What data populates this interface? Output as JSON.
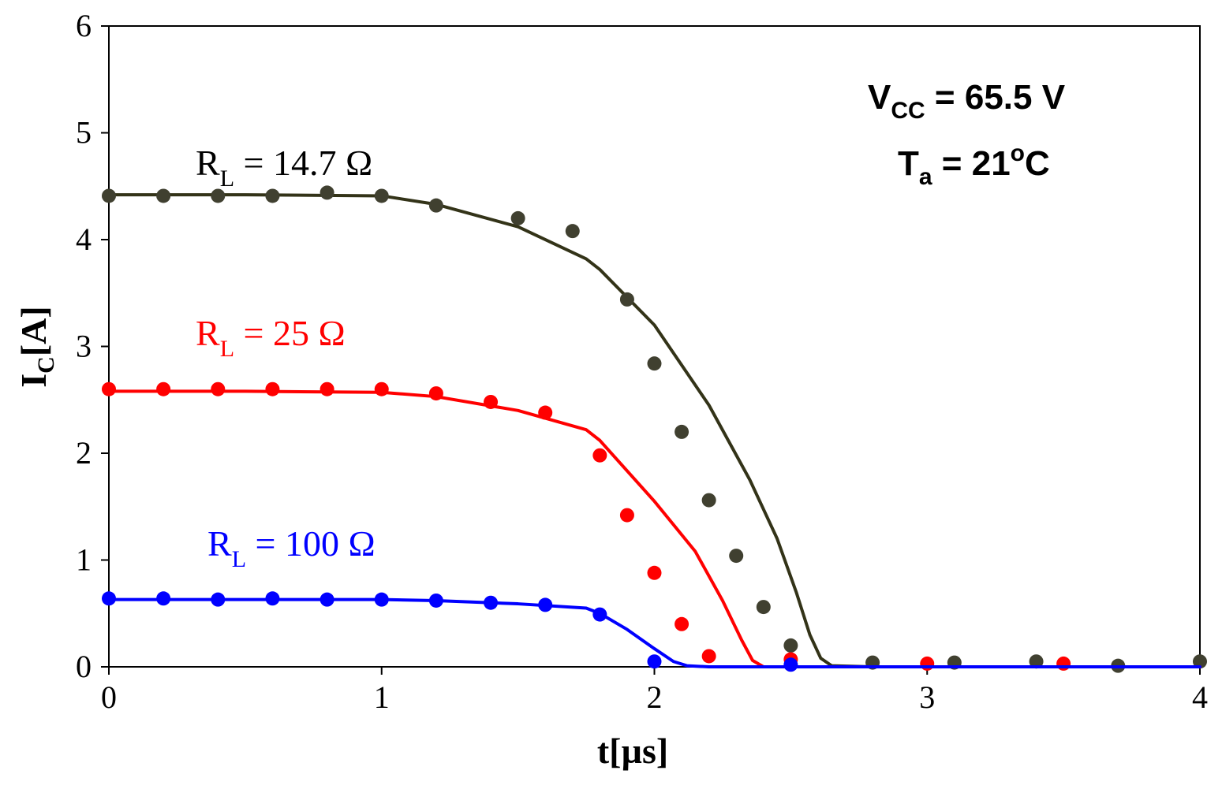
{
  "chart_data": {
    "type": "line+scatter",
    "xlabel": {
      "main": "t",
      "unit": "[µs]"
    },
    "ylabel": {
      "main": "I",
      "sub": "C",
      "unit": "[A]"
    },
    "xlim": [
      0,
      4
    ],
    "ylim": [
      0,
      6
    ],
    "xticks": [
      "0",
      "1",
      "2",
      "3",
      "4"
    ],
    "yticks": [
      "0",
      "1",
      "2",
      "3",
      "4",
      "5",
      "6"
    ],
    "grid": false,
    "conditions": {
      "vcc": {
        "main": "V",
        "sub": "CC",
        "rest": " = 65.5 V"
      },
      "ta": {
        "main": "T",
        "sub": "a",
        "rest": " = 21",
        "sup": "o",
        "tail": "C"
      }
    },
    "series": [
      {
        "name": "RL = 14.7 Ω",
        "label": {
          "main": "R",
          "sub": "L",
          "rest": " = 14.7 Ω"
        },
        "color": "#333318",
        "marker_color": "#404030",
        "label_color": "#000000",
        "line": [
          [
            0,
            4.42
          ],
          [
            0.5,
            4.42
          ],
          [
            1.0,
            4.41
          ],
          [
            1.2,
            4.33
          ],
          [
            1.5,
            4.12
          ],
          [
            1.75,
            3.82
          ],
          [
            1.8,
            3.72
          ],
          [
            2.0,
            3.2
          ],
          [
            2.2,
            2.45
          ],
          [
            2.35,
            1.75
          ],
          [
            2.45,
            1.2
          ],
          [
            2.52,
            0.7
          ],
          [
            2.57,
            0.3
          ],
          [
            2.61,
            0.08
          ],
          [
            2.65,
            0.01
          ],
          [
            2.8,
            0.0
          ],
          [
            4.0,
            0.0
          ]
        ],
        "points": [
          [
            0,
            4.41
          ],
          [
            0.2,
            4.41
          ],
          [
            0.4,
            4.41
          ],
          [
            0.6,
            4.41
          ],
          [
            0.8,
            4.44
          ],
          [
            1.0,
            4.41
          ],
          [
            1.2,
            4.32
          ],
          [
            1.5,
            4.2
          ],
          [
            1.7,
            4.08
          ],
          [
            1.9,
            3.44
          ],
          [
            2.0,
            2.84
          ],
          [
            2.1,
            2.2
          ],
          [
            2.2,
            1.56
          ],
          [
            2.3,
            1.04
          ],
          [
            2.4,
            0.56
          ],
          [
            2.5,
            0.2
          ],
          [
            2.8,
            0.04
          ],
          [
            3.1,
            0.04
          ],
          [
            3.4,
            0.05
          ],
          [
            3.7,
            0.01
          ],
          [
            4.0,
            0.05
          ]
        ]
      },
      {
        "name": "RL = 25 Ω",
        "label": {
          "main": "R",
          "sub": "L",
          "rest": " = 25 Ω"
        },
        "color": "#ff0000",
        "marker_color": "#ff0000",
        "label_color": "#ff0000",
        "line": [
          [
            0,
            2.58
          ],
          [
            0.5,
            2.58
          ],
          [
            1.0,
            2.57
          ],
          [
            1.2,
            2.53
          ],
          [
            1.5,
            2.4
          ],
          [
            1.75,
            2.22
          ],
          [
            1.8,
            2.12
          ],
          [
            2.0,
            1.55
          ],
          [
            2.15,
            1.08
          ],
          [
            2.25,
            0.62
          ],
          [
            2.32,
            0.25
          ],
          [
            2.36,
            0.06
          ],
          [
            2.4,
            0.0
          ],
          [
            4.0,
            0.0
          ]
        ],
        "points": [
          [
            0,
            2.6
          ],
          [
            0.2,
            2.6
          ],
          [
            0.4,
            2.6
          ],
          [
            0.6,
            2.6
          ],
          [
            0.8,
            2.6
          ],
          [
            1.0,
            2.6
          ],
          [
            1.2,
            2.56
          ],
          [
            1.4,
            2.48
          ],
          [
            1.6,
            2.38
          ],
          [
            1.8,
            1.98
          ],
          [
            1.9,
            1.42
          ],
          [
            2.0,
            0.88
          ],
          [
            2.1,
            0.4
          ],
          [
            2.2,
            0.1
          ],
          [
            2.5,
            0.07
          ],
          [
            3.0,
            0.03
          ],
          [
            3.5,
            0.03
          ]
        ]
      },
      {
        "name": "RL = 100 Ω",
        "label": {
          "main": "R",
          "sub": "L",
          "rest": " = 100 Ω"
        },
        "color": "#0000ff",
        "marker_color": "#0000ff",
        "label_color": "#0000ff",
        "line": [
          [
            0,
            0.63
          ],
          [
            1.0,
            0.63
          ],
          [
            1.2,
            0.62
          ],
          [
            1.5,
            0.59
          ],
          [
            1.75,
            0.55
          ],
          [
            1.8,
            0.5
          ],
          [
            1.9,
            0.35
          ],
          [
            2.0,
            0.17
          ],
          [
            2.07,
            0.05
          ],
          [
            2.12,
            0.01
          ],
          [
            2.2,
            0.0
          ],
          [
            4.0,
            0.0
          ]
        ],
        "points": [
          [
            0,
            0.64
          ],
          [
            0.2,
            0.64
          ],
          [
            0.4,
            0.63
          ],
          [
            0.6,
            0.64
          ],
          [
            0.8,
            0.63
          ],
          [
            1.0,
            0.63
          ],
          [
            1.2,
            0.62
          ],
          [
            1.4,
            0.6
          ],
          [
            1.6,
            0.58
          ],
          [
            1.8,
            0.49
          ],
          [
            2.0,
            0.05
          ],
          [
            2.5,
            0.02
          ]
        ]
      }
    ]
  }
}
